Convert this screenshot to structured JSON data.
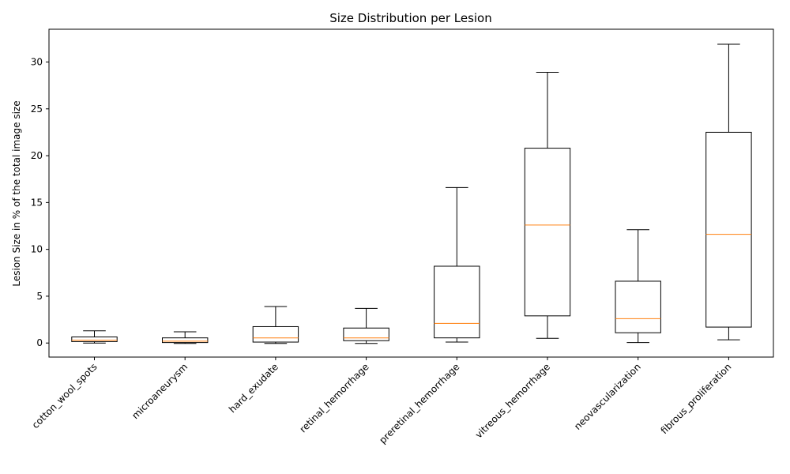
{
  "chart_data": {
    "type": "box",
    "title": "Size Distribution per Lesion",
    "xlabel": "",
    "ylabel": "Lesion Size in % of the total image size",
    "ylim": [
      -1.5,
      33.5
    ],
    "yticks": [
      0,
      5,
      10,
      15,
      20,
      25,
      30
    ],
    "grid": false,
    "colors": {
      "box": "#000000",
      "median": "#ff7f0e",
      "background": "#ffffff"
    },
    "categories": [
      "cotton_wool_spots",
      "microaneurysm",
      "hard_exudate",
      "retinal_hemorrhage",
      "preretinal_hemorrhage",
      "vitreous_hemorrhage",
      "neovascularization",
      "fibrous_proliferation"
    ],
    "boxes": [
      {
        "whisker_low": 0.0,
        "q1": 0.15,
        "median": 0.3,
        "q3": 0.65,
        "whisker_high": 1.3
      },
      {
        "whisker_low": -0.05,
        "q1": 0.05,
        "median": 0.2,
        "q3": 0.55,
        "whisker_high": 1.2
      },
      {
        "whisker_low": -0.05,
        "q1": 0.1,
        "median": 0.55,
        "q3": 1.75,
        "whisker_high": 3.9
      },
      {
        "whisker_low": -0.05,
        "q1": 0.25,
        "median": 0.55,
        "q3": 1.6,
        "whisker_high": 3.7
      },
      {
        "whisker_low": 0.1,
        "q1": 0.55,
        "median": 2.1,
        "q3": 8.2,
        "whisker_high": 16.6
      },
      {
        "whisker_low": 0.5,
        "q1": 2.9,
        "median": 12.6,
        "q3": 20.8,
        "whisker_high": 28.9
      },
      {
        "whisker_low": 0.05,
        "q1": 1.1,
        "median": 2.6,
        "q3": 6.6,
        "whisker_high": 12.1
      },
      {
        "whisker_low": 0.35,
        "q1": 1.7,
        "median": 11.6,
        "q3": 22.5,
        "whisker_high": 31.9
      }
    ]
  }
}
